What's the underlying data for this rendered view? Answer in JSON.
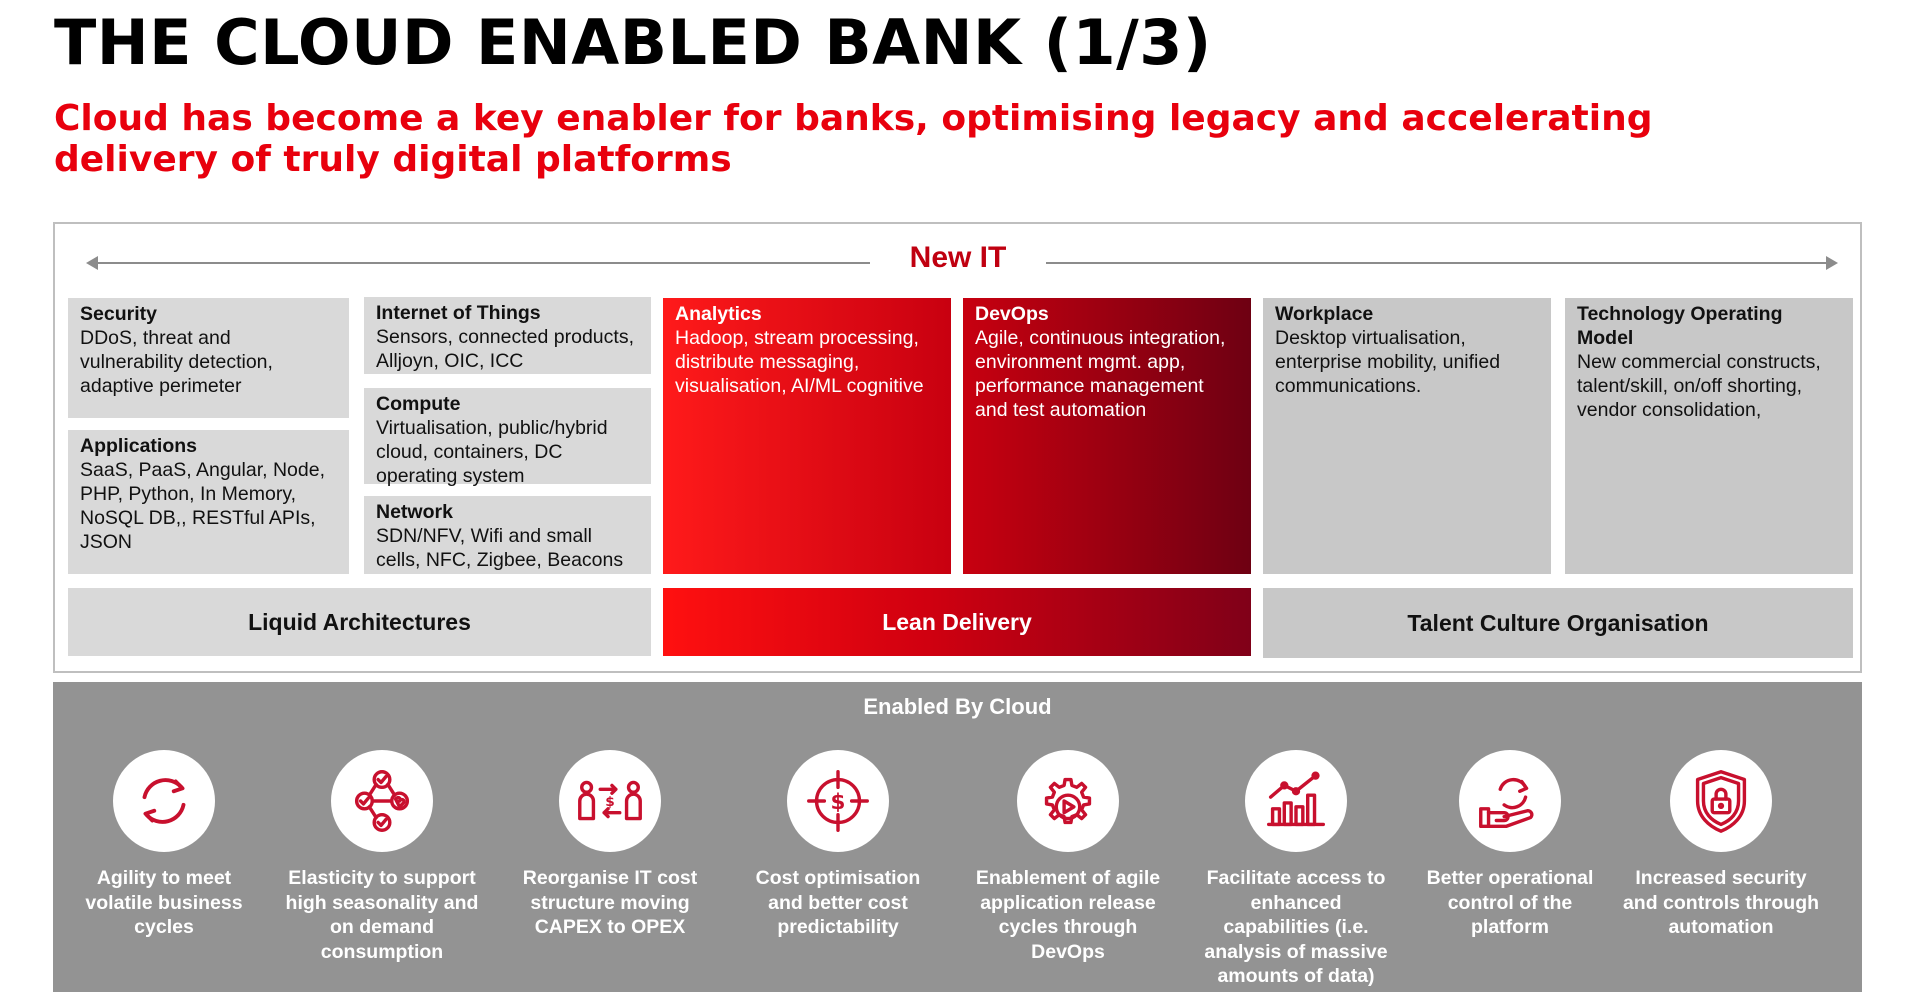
{
  "title": "THE CLOUD ENABLED BANK (1/3)",
  "subtitle": "Cloud has become a key enabler for banks, optimising legacy and accelerating delivery of truly digital platforms",
  "new_it": {
    "label": "New IT"
  },
  "boxes": {
    "security": {
      "head": "Security",
      "body": "DDoS, threat and vulnerability detection, adaptive perimeter"
    },
    "applications": {
      "head": "Applications",
      "body": "SaaS, PaaS, Angular, Node, PHP, Python, In Memory, NoSQL DB,, RESTful APIs, JSON"
    },
    "iot": {
      "head": "Internet of Things",
      "body": "Sensors, connected products, Alljoyn, OIC, ICC"
    },
    "compute": {
      "head": "Compute",
      "body": "Virtualisation, public/hybrid cloud, containers, DC operating system"
    },
    "network": {
      "head": "Network",
      "body": "SDN/NFV, Wifi and small cells, NFC, Zigbee, Beacons"
    },
    "analytics": {
      "head": "Analytics",
      "body": "Hadoop, stream processing, distribute messaging, visualisation, AI/ML cognitive"
    },
    "devops": {
      "head": "DevOps",
      "body": "Agile, continuous integration, environment mgmt. app, performance management and test automation"
    },
    "workplace": {
      "head": "Workplace",
      "body": "Desktop virtualisation, enterprise mobility, unified communications."
    },
    "tom": {
      "head": "Technology Operating Model",
      "body": "New commercial constructs, talent/skill, on/off shorting, vendor consolidation,"
    }
  },
  "pillars": {
    "liquid": "Liquid Architectures",
    "lean": "Lean Delivery",
    "talent": "Talent Culture Organisation"
  },
  "cloud": {
    "title": "Enabled By Cloud",
    "benefits": [
      {
        "icon": "refresh-cycle-icon",
        "label": "Agility to meet volatile business cycles"
      },
      {
        "icon": "elasticity-network-icon",
        "label": "Elasticity to support high seasonality and on demand consumption"
      },
      {
        "icon": "cost-exchange-icon",
        "label": "Reorganise IT cost structure moving CAPEX to OPEX"
      },
      {
        "icon": "dollar-target-icon",
        "label": "Cost optimisation and better cost predictability"
      },
      {
        "icon": "gear-play-icon",
        "label": "Enablement of agile application release cycles through DevOps"
      },
      {
        "icon": "growth-chart-icon",
        "label": "Facilitate access to enhanced capabilities (i.e. analysis of massive amounts of data)"
      },
      {
        "icon": "hand-control-icon",
        "label": "Better operational control of the platform"
      },
      {
        "icon": "shield-lock-icon",
        "label": "Increased security and controls through automation"
      }
    ]
  },
  "colors": {
    "accent_red": "#e8000d",
    "dark_red": "#c00010",
    "icon_red": "#c8102e",
    "grey_panel": "#939393"
  }
}
